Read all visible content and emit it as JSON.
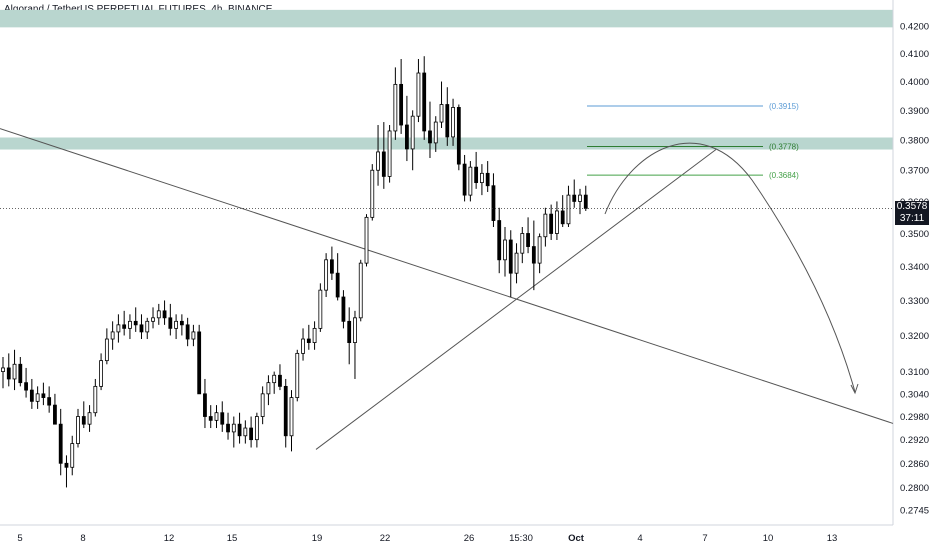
{
  "chart_data": {
    "type": "candlestick",
    "title": "Algorand / TetherUS PERPETUAL FUTURES, 4h, BINANCE",
    "symbol": "Algorand / TetherUS PERPETUAL FUTURES",
    "interval": "4h",
    "exchange": "BINANCE",
    "y_axis": {
      "scale": "log",
      "range": [
        0.272,
        0.426
      ],
      "ticks": [
        "0.4200",
        "0.4100",
        "0.4000",
        "0.3900",
        "0.3800",
        "0.3700",
        "0.3600",
        "0.3500",
        "0.3400",
        "0.3300",
        "0.3200",
        "0.3100",
        "0.3040",
        "0.2980",
        "0.2920",
        "0.2860",
        "0.2800",
        "0.2745"
      ]
    },
    "x_axis": {
      "ticks": [
        "5",
        "8",
        "12",
        "15",
        "19",
        "22",
        "26",
        "15:30",
        "Oct",
        "4",
        "7",
        "10",
        "13"
      ]
    },
    "last_price": "0.3578",
    "countdown": "37:11",
    "bars": [
      [
        0.31,
        0.314,
        0.3055,
        0.311
      ],
      [
        0.311,
        0.315,
        0.306,
        0.308
      ],
      [
        0.308,
        0.316,
        0.305,
        0.312
      ],
      [
        0.312,
        0.314,
        0.306,
        0.307
      ],
      [
        0.307,
        0.311,
        0.303,
        0.305
      ],
      [
        0.305,
        0.308,
        0.3,
        0.302
      ],
      [
        0.302,
        0.306,
        0.3,
        0.304
      ],
      [
        0.304,
        0.307,
        0.301,
        0.303
      ],
      [
        0.303,
        0.306,
        0.299,
        0.301
      ],
      [
        0.301,
        0.304,
        0.297,
        0.296
      ],
      [
        0.296,
        0.3,
        0.283,
        0.286
      ],
      [
        0.286,
        0.288,
        0.28,
        0.285
      ],
      [
        0.285,
        0.293,
        0.283,
        0.291
      ],
      [
        0.291,
        0.3,
        0.29,
        0.298
      ],
      [
        0.298,
        0.302,
        0.295,
        0.296
      ],
      [
        0.296,
        0.301,
        0.294,
        0.299
      ],
      [
        0.299,
        0.308,
        0.298,
        0.306
      ],
      [
        0.306,
        0.315,
        0.305,
        0.313
      ],
      [
        0.313,
        0.322,
        0.312,
        0.319
      ],
      [
        0.319,
        0.324,
        0.316,
        0.321
      ],
      [
        0.321,
        0.326,
        0.318,
        0.323
      ],
      [
        0.323,
        0.327,
        0.32,
        0.322
      ],
      [
        0.322,
        0.326,
        0.319,
        0.324
      ],
      [
        0.324,
        0.328,
        0.321,
        0.323
      ],
      [
        0.323,
        0.326,
        0.319,
        0.321
      ],
      [
        0.321,
        0.325,
        0.319,
        0.324
      ],
      [
        0.324,
        0.328,
        0.322,
        0.325
      ],
      [
        0.325,
        0.329,
        0.323,
        0.327
      ],
      [
        0.327,
        0.33,
        0.323,
        0.325
      ],
      [
        0.325,
        0.329,
        0.32,
        0.322
      ],
      [
        0.322,
        0.326,
        0.319,
        0.324
      ],
      [
        0.324,
        0.326,
        0.32,
        0.323
      ],
      [
        0.323,
        0.325,
        0.317,
        0.319
      ],
      [
        0.319,
        0.323,
        0.317,
        0.321
      ],
      [
        0.321,
        0.323,
        0.308,
        0.304
      ],
      [
        0.304,
        0.308,
        0.295,
        0.298
      ],
      [
        0.298,
        0.301,
        0.295,
        0.297
      ],
      [
        0.297,
        0.301,
        0.295,
        0.299
      ],
      [
        0.299,
        0.302,
        0.294,
        0.296
      ],
      [
        0.296,
        0.299,
        0.292,
        0.294
      ],
      [
        0.294,
        0.298,
        0.29,
        0.296
      ],
      [
        0.296,
        0.299,
        0.291,
        0.293
      ],
      [
        0.293,
        0.297,
        0.291,
        0.295
      ],
      [
        0.295,
        0.298,
        0.29,
        0.292
      ],
      [
        0.292,
        0.299,
        0.29,
        0.298
      ],
      [
        0.298,
        0.306,
        0.296,
        0.304
      ],
      [
        0.304,
        0.309,
        0.301,
        0.307
      ],
      [
        0.307,
        0.31,
        0.304,
        0.309
      ],
      [
        0.309,
        0.312,
        0.305,
        0.306
      ],
      [
        0.306,
        0.308,
        0.29,
        0.293
      ],
      [
        0.293,
        0.305,
        0.289,
        0.303
      ],
      [
        0.303,
        0.316,
        0.302,
        0.315
      ],
      [
        0.315,
        0.322,
        0.313,
        0.319
      ],
      [
        0.319,
        0.323,
        0.316,
        0.318
      ],
      [
        0.318,
        0.324,
        0.316,
        0.322
      ],
      [
        0.322,
        0.335,
        0.321,
        0.333
      ],
      [
        0.333,
        0.344,
        0.331,
        0.342
      ],
      [
        0.342,
        0.346,
        0.336,
        0.338
      ],
      [
        0.338,
        0.344,
        0.33,
        0.331
      ],
      [
        0.331,
        0.333,
        0.322,
        0.324
      ],
      [
        0.324,
        0.328,
        0.312,
        0.318
      ],
      [
        0.318,
        0.327,
        0.308,
        0.325
      ],
      [
        0.325,
        0.342,
        0.324,
        0.341
      ],
      [
        0.341,
        0.356,
        0.34,
        0.355
      ],
      [
        0.355,
        0.372,
        0.354,
        0.37
      ],
      [
        0.37,
        0.385,
        0.365,
        0.376
      ],
      [
        0.376,
        0.386,
        0.364,
        0.368
      ],
      [
        0.368,
        0.385,
        0.366,
        0.383
      ],
      [
        0.383,
        0.405,
        0.38,
        0.399
      ],
      [
        0.399,
        0.408,
        0.382,
        0.385
      ],
      [
        0.385,
        0.395,
        0.373,
        0.377
      ],
      [
        0.377,
        0.39,
        0.37,
        0.388
      ],
      [
        0.388,
        0.408,
        0.386,
        0.403
      ],
      [
        0.403,
        0.409,
        0.38,
        0.383
      ],
      [
        0.383,
        0.393,
        0.374,
        0.379
      ],
      [
        0.379,
        0.388,
        0.376,
        0.386
      ],
      [
        0.386,
        0.4,
        0.384,
        0.392
      ],
      [
        0.392,
        0.398,
        0.378,
        0.381
      ],
      [
        0.381,
        0.394,
        0.378,
        0.391
      ],
      [
        0.391,
        0.392,
        0.37,
        0.372
      ],
      [
        0.372,
        0.375,
        0.36,
        0.362
      ],
      [
        0.362,
        0.373,
        0.36,
        0.371
      ],
      [
        0.371,
        0.376,
        0.364,
        0.366
      ],
      [
        0.366,
        0.372,
        0.362,
        0.369
      ],
      [
        0.369,
        0.373,
        0.363,
        0.365
      ],
      [
        0.365,
        0.369,
        0.352,
        0.354
      ],
      [
        0.354,
        0.358,
        0.338,
        0.342
      ],
      [
        0.342,
        0.352,
        0.337,
        0.348
      ],
      [
        0.348,
        0.351,
        0.331,
        0.338
      ],
      [
        0.338,
        0.347,
        0.335,
        0.344
      ],
      [
        0.344,
        0.352,
        0.341,
        0.35
      ],
      [
        0.35,
        0.355,
        0.344,
        0.346
      ],
      [
        0.346,
        0.354,
        0.333,
        0.341
      ],
      [
        0.341,
        0.35,
        0.338,
        0.349
      ],
      [
        0.349,
        0.358,
        0.346,
        0.356
      ],
      [
        0.356,
        0.359,
        0.348,
        0.35
      ],
      [
        0.35,
        0.36,
        0.348,
        0.357
      ],
      [
        0.357,
        0.362,
        0.352,
        0.353
      ],
      [
        0.353,
        0.365,
        0.352,
        0.362
      ],
      [
        0.362,
        0.367,
        0.358,
        0.36
      ],
      [
        0.36,
        0.364,
        0.356,
        0.362
      ],
      [
        0.362,
        0.365,
        0.357,
        0.3578
      ]
    ],
    "horizontal_levels": [
      {
        "label": "(0.3915)",
        "value": 0.3915,
        "color": "#5b9bd5"
      },
      {
        "label": "(0.3778)",
        "value": 0.3778,
        "color": "#2e7d32"
      },
      {
        "label": "(0.3684)",
        "value": 0.3684,
        "color": "#43a047"
      }
    ],
    "zones": [
      {
        "from": 0.4195,
        "to": 0.426,
        "color": "#b9d6cf"
      },
      {
        "from": 0.3768,
        "to": 0.3808,
        "color": "#b9d6cf"
      }
    ],
    "colors": {
      "candle": "#000000",
      "line": "#555555",
      "grid": "#e0e3eb",
      "axis_text": "#131722",
      "last_price_line": "#333333",
      "last_price_tag": "#131722"
    }
  }
}
